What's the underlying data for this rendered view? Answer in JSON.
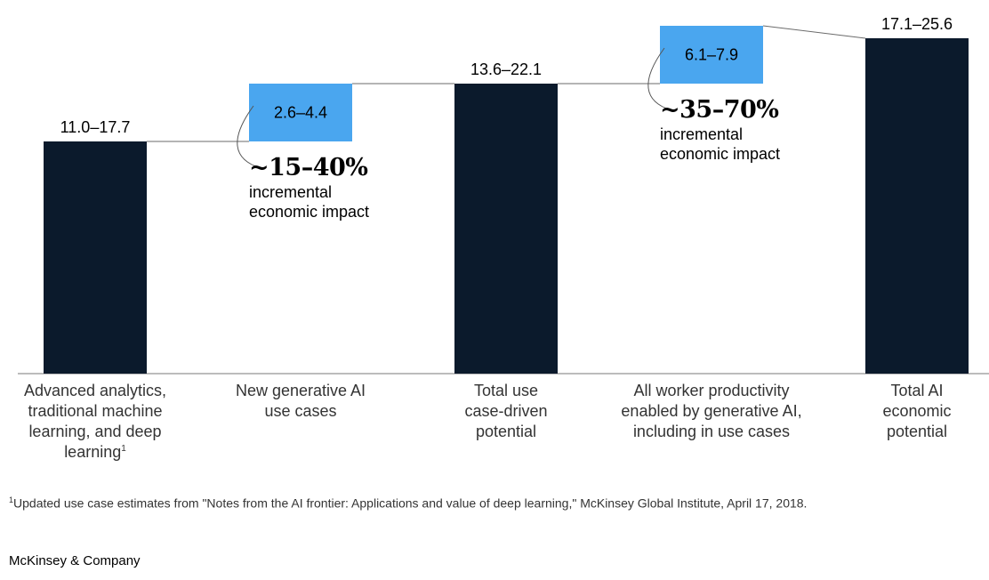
{
  "chart_data": {
    "type": "bar",
    "subtype": "waterfall-range",
    "colors": {
      "base": "#0b1a2c",
      "increment": "#4aa6ef",
      "line": "#6b6b6b"
    },
    "categories": [
      {
        "label": "Advanced analytics, traditional machine learning, and deep learning",
        "footnote_mark": "1",
        "kind": "base",
        "low": 11.0,
        "high": 17.7,
        "value_label": "11.0–17.7"
      },
      {
        "label": "New generative AI use cases",
        "footnote_mark": "",
        "kind": "increment",
        "low": 2.6,
        "high": 4.4,
        "value_label": "2.6–4.4"
      },
      {
        "label": "Total use case-driven potential",
        "footnote_mark": "",
        "kind": "total",
        "low": 13.6,
        "high": 22.1,
        "value_label": "13.6–22.1"
      },
      {
        "label": "All worker productivity enabled by generative AI, including in use cases",
        "footnote_mark": "",
        "kind": "increment",
        "low": 6.1,
        "high": 7.9,
        "value_label": "6.1–7.9"
      },
      {
        "label": "Total AI economic potential",
        "footnote_mark": "",
        "kind": "total",
        "low": 17.1,
        "high": 25.6,
        "value_label": "17.1–25.6"
      }
    ],
    "annotations": [
      {
        "attached_to": 1,
        "percent": "~15–40%",
        "line1": "incremental",
        "line2": "economic impact"
      },
      {
        "attached_to": 3,
        "percent": "~35–70%",
        "line1": "incremental",
        "line2": "economic impact"
      }
    ]
  },
  "footnote": {
    "mark": "1",
    "text": "Updated use case estimates from \"Notes from the AI frontier: Applications and value of deep learning,\" McKinsey Global Institute, April 17, 2018."
  },
  "brand": "McKinsey & Company"
}
